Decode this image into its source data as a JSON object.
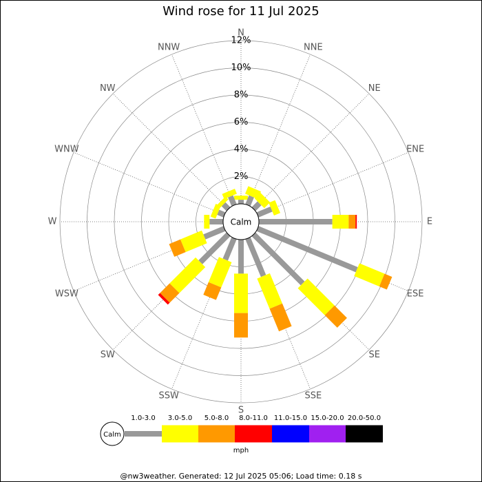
{
  "chart_data": {
    "type": "windrose",
    "title": "Wind rose for 11 Jul 2025",
    "categories": [
      "N",
      "NNE",
      "NE",
      "ENE",
      "E",
      "ESE",
      "SE",
      "SSE",
      "S",
      "SSW",
      "SW",
      "WSW",
      "W",
      "WNW",
      "NW",
      "NNW"
    ],
    "calm_label": "Calm",
    "units": "mph",
    "footer": "@nw3weather. Generated: 12 Jul 2025 05:06; Load time: 0.18 s",
    "rlim": [
      0,
      12
    ],
    "rticks": [
      {
        "value": 2,
        "label": "2%"
      },
      {
        "value": 4,
        "label": "4%"
      },
      {
        "value": 6,
        "label": "6%"
      },
      {
        "value": 8,
        "label": "8%"
      },
      {
        "value": 10,
        "label": "10%"
      },
      {
        "value": 12,
        "label": "12%"
      }
    ],
    "series": [
      {
        "name": "1.0-3.0",
        "color": "#999999",
        "values": [
          0.3,
          0.7,
          0.6,
          1.1,
          5.4,
          7.9,
          5.1,
          3.0,
          2.5,
          1.7,
          2.9,
          1.6,
          1.0,
          0.5,
          0.5,
          0.7
        ]
      },
      {
        "name": "3.0-5.0",
        "color": "#ffff00",
        "values": [
          0.3,
          0.6,
          0.6,
          0.5,
          1.2,
          2.0,
          2.8,
          2.4,
          2.9,
          2.0,
          2.7,
          1.7,
          0.4,
          0.4,
          0.3,
          0.4
        ]
      },
      {
        "name": "5.0-8.0",
        "color": "#ff9900",
        "values": [
          0,
          0,
          0,
          0,
          0.5,
          0.6,
          1.3,
          1.8,
          1.8,
          1.0,
          1.0,
          0.9,
          0,
          0,
          0,
          0
        ]
      },
      {
        "name": "8.0-11.0",
        "color": "#ff0000",
        "values": [
          0,
          0,
          0,
          0,
          0.1,
          0,
          0,
          0,
          0,
          0,
          0.2,
          0,
          0,
          0,
          0,
          0
        ]
      },
      {
        "name": "11.0-15.0",
        "color": "#0000ff",
        "values": [
          0,
          0,
          0,
          0,
          0,
          0,
          0,
          0,
          0,
          0,
          0,
          0,
          0,
          0,
          0,
          0
        ]
      },
      {
        "name": "15.0-20.0",
        "color": "#a020f0",
        "values": [
          0,
          0,
          0,
          0,
          0,
          0,
          0,
          0,
          0,
          0,
          0,
          0,
          0,
          0,
          0,
          0
        ]
      },
      {
        "name": "20.0-50.0",
        "color": "#000000",
        "values": [
          0,
          0,
          0,
          0,
          0,
          0,
          0,
          0,
          0,
          0,
          0,
          0,
          0,
          0,
          0,
          0
        ]
      }
    ]
  }
}
